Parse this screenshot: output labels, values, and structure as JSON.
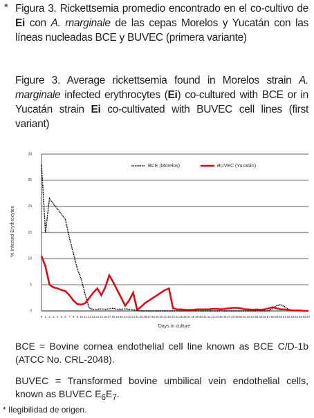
{
  "caption_es": {
    "marker": "*",
    "parts": [
      "Figura 3. Rickettsemia promedio encontrado en el co-cultivo de ",
      "Ei",
      " con ",
      "A. marginale",
      " de las cepas Morelos y Yucatán con las líneas nucleadas BCE y BUVEC (primera variante)"
    ]
  },
  "caption_en": {
    "parts": [
      "Figure 3. Average rickettsemia found in Morelos strain ",
      "A. marginale",
      " infected erythrocytes (",
      "Ei",
      ") co-cultured with BCE or in Yucatán strain ",
      "Ei",
      " co-cultivated with BUVEC cell lines (first variant)"
    ]
  },
  "chart_data": {
    "type": "line",
    "x_label": "Days in culture",
    "y_label": "% Infected Erythrocytes",
    "x": [
      0,
      1,
      2,
      3,
      4,
      5,
      6,
      7,
      8,
      9,
      10,
      11,
      12,
      13,
      14,
      15,
      16,
      17,
      18,
      19,
      20,
      21,
      22,
      23,
      24,
      25,
      26,
      27,
      28,
      29,
      30,
      31,
      32,
      33,
      34,
      35,
      36,
      37,
      38,
      39,
      40,
      41,
      42,
      43,
      44,
      45,
      46,
      47,
      48,
      49,
      50,
      51,
      52,
      53,
      54,
      55,
      56,
      57,
      58,
      59,
      60,
      61,
      62,
      63,
      64,
      65,
      66,
      67
    ],
    "xlim": [
      0,
      67
    ],
    "ylim": [
      0,
      30
    ],
    "yticks": [
      0,
      5,
      10,
      15,
      20,
      25,
      30
    ],
    "grid": true,
    "legend": "top",
    "series": [
      {
        "name": "BCE (Morelos)",
        "color": "#000000",
        "dash": "dotted",
        "values": [
          28,
          15,
          21.5,
          20.5,
          19.5,
          18.5,
          17.5,
          14,
          11,
          8,
          6,
          3,
          0.5,
          0.3,
          0.3,
          0.4,
          0.3,
          0.4,
          0.5,
          0.3,
          0.3,
          0.4,
          0.3,
          0.2,
          0.1,
          0,
          0,
          0,
          0,
          0,
          0,
          0,
          0,
          0,
          0,
          0,
          0,
          0,
          0,
          0,
          0,
          0,
          0,
          0,
          0,
          0,
          0,
          0,
          0,
          0,
          0,
          0,
          0,
          0,
          0,
          0,
          0,
          0,
          0.5,
          1,
          1.2,
          0.8,
          0.3,
          0,
          0,
          0,
          0,
          0
        ]
      },
      {
        "name": "BUVEC (Yucatán)",
        "color": "#e8000b",
        "dash": "solid",
        "values": [
          10.5,
          8.5,
          5,
          4.5,
          4.3,
          4,
          3.8,
          3,
          2,
          1.3,
          1.2,
          1.5,
          2.5,
          3.5,
          4.3,
          3,
          4.5,
          6.8,
          5.5,
          4,
          2.5,
          1,
          2,
          3.5,
          0.2,
          0.8,
          1.5,
          2,
          2.5,
          3,
          3.5,
          4,
          4.3,
          0.5,
          0.3,
          0.3,
          0.2,
          0.2,
          0.2,
          0.3,
          0.3,
          0.3,
          0.3,
          0.4,
          0.4,
          0.3,
          0.4,
          0.5,
          0.6,
          0.6,
          0.5,
          0.3,
          0.3,
          0.2,
          0.3,
          0.2,
          0.3,
          0.5,
          0.7,
          0.5,
          0.3,
          0.3,
          0.2,
          0.1,
          0.1,
          0.1,
          0,
          0
        ]
      }
    ]
  },
  "note_bce": "BCE = Bovine cornea endothelial cell line known as BCE C/D-1b (ATCC No. CRL-2048).",
  "note_buvec": {
    "parts": [
      "BUVEC = Transformed bovine umbilical vein endothelial cells, known as BUVEC E",
      "6",
      "E",
      "7",
      "."
    ]
  },
  "footnote": "* Ilegibilidad de origen."
}
